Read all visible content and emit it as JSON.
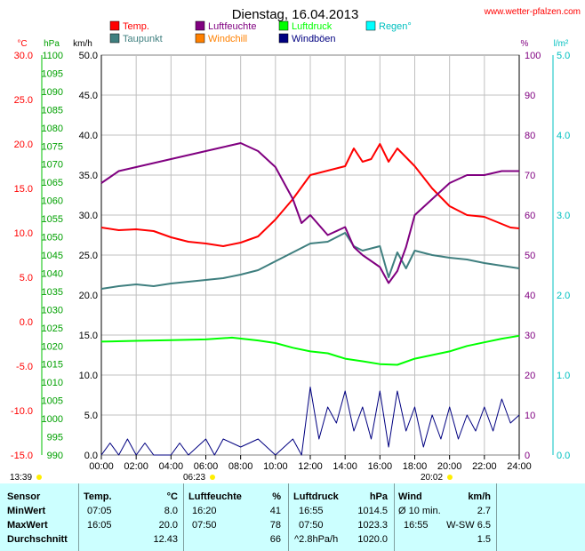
{
  "header": {
    "title": "Dienstag, 16.04.2013",
    "site": "www.wetter-pfalzen.com"
  },
  "legend": [
    {
      "label": "Temp.",
      "color": "#ff0000"
    },
    {
      "label": "Taupunkt",
      "color": "#3f7f7f"
    },
    {
      "label": "Luftfeuchte",
      "color": "#800080"
    },
    {
      "label": "Windchill",
      "color": "#ff8000"
    },
    {
      "label": "Luftdruck",
      "color": "#00ff00"
    },
    {
      "label": "Windböen",
      "color": "#000080"
    },
    {
      "label": "Regen°",
      "color": "#00ffff"
    }
  ],
  "axis_units": {
    "temp": "°C",
    "pressure": "hPa",
    "wind": "km/h",
    "humidity": "%",
    "rain": "l/m²"
  },
  "chart_data": {
    "type": "line",
    "x_ticks": [
      "00:00",
      "02:00",
      "04:00",
      "06:00",
      "08:00",
      "10:00",
      "12:00",
      "14:00",
      "16:00",
      "18:00",
      "20:00",
      "22:00",
      "24:00"
    ],
    "axes": {
      "temp": {
        "min": -15.0,
        "max": 30.0,
        "ticks": [
          "30.0",
          "25.0",
          "20.0",
          "15.0",
          "10.0",
          "5.0",
          "0.0",
          "-5.0",
          "-10.0",
          "-15.0"
        ]
      },
      "pressure": {
        "min": 990,
        "max": 1100,
        "ticks": [
          "1100",
          "1095",
          "1090",
          "1085",
          "1080",
          "1075",
          "1070",
          "1065",
          "1060",
          "1055",
          "1050",
          "1045",
          "1040",
          "1035",
          "1030",
          "1025",
          "1020",
          "1015",
          "1010",
          "1005",
          "1000",
          "995",
          "990"
        ]
      },
      "wind": {
        "min": 0.0,
        "max": 50.0,
        "ticks": [
          "50.0",
          "45.0",
          "40.0",
          "35.0",
          "30.0",
          "25.0",
          "20.0",
          "15.0",
          "10.0",
          "5.0",
          "0.0"
        ]
      },
      "humidity": {
        "min": 0,
        "max": 100,
        "ticks": [
          "100",
          "90",
          "80",
          "70",
          "60",
          "50",
          "40",
          "30",
          "20",
          "10",
          "0"
        ]
      },
      "rain": {
        "min": 0.0,
        "max": 5.0,
        "ticks": [
          "5.0",
          "4.0",
          "3.0",
          "2.0",
          "1.0",
          "0.0"
        ]
      }
    },
    "series": [
      {
        "name": "Temp.",
        "axis": "temp",
        "color": "#ff0000",
        "points": [
          [
            0,
            10.6
          ],
          [
            1,
            10.3
          ],
          [
            2,
            10.4
          ],
          [
            3,
            10.2
          ],
          [
            4,
            9.5
          ],
          [
            5,
            9.0
          ],
          [
            6,
            8.8
          ],
          [
            7,
            8.5
          ],
          [
            8,
            8.9
          ],
          [
            9,
            9.6
          ],
          [
            10,
            11.5
          ],
          [
            11,
            13.8
          ],
          [
            12,
            16.5
          ],
          [
            13,
            17.0
          ],
          [
            14,
            17.5
          ],
          [
            14.5,
            19.5
          ],
          [
            15,
            18.0
          ],
          [
            15.5,
            18.3
          ],
          [
            16,
            20.0
          ],
          [
            16.5,
            18.0
          ],
          [
            17,
            19.5
          ],
          [
            18,
            17.5
          ],
          [
            19,
            15.0
          ],
          [
            20,
            13.0
          ],
          [
            21,
            12.0
          ],
          [
            22,
            11.8
          ],
          [
            23,
            11.0
          ],
          [
            23.5,
            10.6
          ],
          [
            24,
            10.5
          ]
        ]
      },
      {
        "name": "Taupunkt",
        "axis": "temp",
        "color": "#3f7f7f",
        "points": [
          [
            0,
            3.7
          ],
          [
            1,
            4.0
          ],
          [
            2,
            4.2
          ],
          [
            3,
            4.0
          ],
          [
            4,
            4.3
          ],
          [
            5,
            4.5
          ],
          [
            6,
            4.7
          ],
          [
            7,
            4.9
          ],
          [
            8,
            5.3
          ],
          [
            9,
            5.8
          ],
          [
            10,
            6.8
          ],
          [
            11,
            7.8
          ],
          [
            12,
            8.8
          ],
          [
            13,
            9.0
          ],
          [
            14,
            10.0
          ],
          [
            14.5,
            8.5
          ],
          [
            15,
            8.0
          ],
          [
            16,
            8.5
          ],
          [
            16.5,
            5.0
          ],
          [
            17,
            7.8
          ],
          [
            17.5,
            6.0
          ],
          [
            18,
            8.0
          ],
          [
            19,
            7.5
          ],
          [
            20,
            7.2
          ],
          [
            21,
            7.0
          ],
          [
            22,
            6.6
          ],
          [
            23,
            6.3
          ],
          [
            24,
            6.0
          ]
        ]
      },
      {
        "name": "Luftfeuchte",
        "axis": "humidity",
        "color": "#800080",
        "points": [
          [
            0,
            68
          ],
          [
            1,
            71
          ],
          [
            2,
            72
          ],
          [
            3,
            73
          ],
          [
            4,
            74
          ],
          [
            5,
            75
          ],
          [
            6,
            76
          ],
          [
            7,
            77
          ],
          [
            8,
            78
          ],
          [
            9,
            76
          ],
          [
            10,
            72
          ],
          [
            11,
            64
          ],
          [
            11.5,
            58
          ],
          [
            12,
            60
          ],
          [
            13,
            55
          ],
          [
            14,
            57
          ],
          [
            14.5,
            52
          ],
          [
            15,
            50
          ],
          [
            16,
            47
          ],
          [
            16.5,
            43
          ],
          [
            17,
            46
          ],
          [
            17.5,
            52
          ],
          [
            18,
            60
          ],
          [
            19,
            64
          ],
          [
            20,
            68
          ],
          [
            21,
            70
          ],
          [
            22,
            70
          ],
          [
            23,
            71
          ],
          [
            24,
            71
          ]
        ]
      },
      {
        "name": "Luftdruck",
        "axis": "pressure",
        "color": "#00ff00",
        "points": [
          [
            0,
            1021.2
          ],
          [
            2,
            1021.4
          ],
          [
            4,
            1021.6
          ],
          [
            6,
            1021.8
          ],
          [
            7.5,
            1022.3
          ],
          [
            9,
            1021.5
          ],
          [
            10,
            1020.8
          ],
          [
            11,
            1019.5
          ],
          [
            12,
            1018.5
          ],
          [
            13,
            1018.0
          ],
          [
            14,
            1016.5
          ],
          [
            15,
            1015.8
          ],
          [
            16,
            1015.0
          ],
          [
            17,
            1014.8
          ],
          [
            18,
            1016.5
          ],
          [
            19,
            1017.5
          ],
          [
            20,
            1018.5
          ],
          [
            21,
            1020.0
          ],
          [
            22,
            1021.0
          ],
          [
            23,
            1022.0
          ],
          [
            24,
            1022.8
          ]
        ]
      },
      {
        "name": "Windböen",
        "axis": "wind",
        "color": "#000080",
        "points": [
          [
            0,
            0
          ],
          [
            0.5,
            1.5
          ],
          [
            1,
            0
          ],
          [
            1.5,
            2
          ],
          [
            2,
            0
          ],
          [
            2.5,
            1.5
          ],
          [
            3,
            0
          ],
          [
            4,
            0
          ],
          [
            4.5,
            1.5
          ],
          [
            5,
            0
          ],
          [
            6,
            2
          ],
          [
            6.5,
            0
          ],
          [
            7,
            2
          ],
          [
            8,
            1
          ],
          [
            9,
            2
          ],
          [
            10,
            0
          ],
          [
            11,
            2
          ],
          [
            11.5,
            0
          ],
          [
            12,
            8.5
          ],
          [
            12.5,
            2
          ],
          [
            13,
            6
          ],
          [
            13.5,
            4
          ],
          [
            14,
            8
          ],
          [
            14.5,
            3
          ],
          [
            15,
            6
          ],
          [
            15.5,
            2
          ],
          [
            16,
            8
          ],
          [
            16.5,
            1
          ],
          [
            17,
            8
          ],
          [
            17.5,
            3
          ],
          [
            18,
            6
          ],
          [
            18.5,
            1
          ],
          [
            19,
            5
          ],
          [
            19.5,
            2
          ],
          [
            20,
            6
          ],
          [
            20.5,
            2
          ],
          [
            21,
            5
          ],
          [
            21.5,
            3
          ],
          [
            22,
            6
          ],
          [
            22.5,
            3
          ],
          [
            23,
            7
          ],
          [
            23.5,
            4
          ],
          [
            24,
            5
          ]
        ]
      }
    ]
  },
  "time_markers": {
    "left": "13:39",
    "sunrise": "06:23",
    "sunset": "20:02"
  },
  "stats": {
    "headers": {
      "sensor": "Sensor",
      "temp": "Temp.",
      "temp_unit": "°C",
      "hum": "Luftfeuchte",
      "hum_unit": "%",
      "press": "Luftdruck",
      "press_unit": "hPa",
      "wind": "Wind",
      "wind_unit": "km/h"
    },
    "rows": [
      {
        "label": "MinWert",
        "t_time": "07:05",
        "t_val": "8.0",
        "h_time": "16:20",
        "h_val": "41",
        "p_time": "16:55",
        "p_val": "1014.5",
        "w_time": "Ø 10 min.",
        "w_val": "2.7"
      },
      {
        "label": "MaxWert",
        "t_time": "16:05",
        "t_val": "20.0",
        "h_time": "07:50",
        "h_val": "78",
        "p_time": "07:50",
        "p_val": "1023.3",
        "w_time": "16:55",
        "w_val": "W-SW 6.5"
      },
      {
        "label": "Durchschnitt",
        "t_time": "",
        "t_val": "12.43",
        "h_time": "",
        "h_val": "66",
        "p_time": "^2.8hPa/h",
        "p_val": "1020.0",
        "w_time": "",
        "w_val": "1.5"
      }
    ]
  }
}
